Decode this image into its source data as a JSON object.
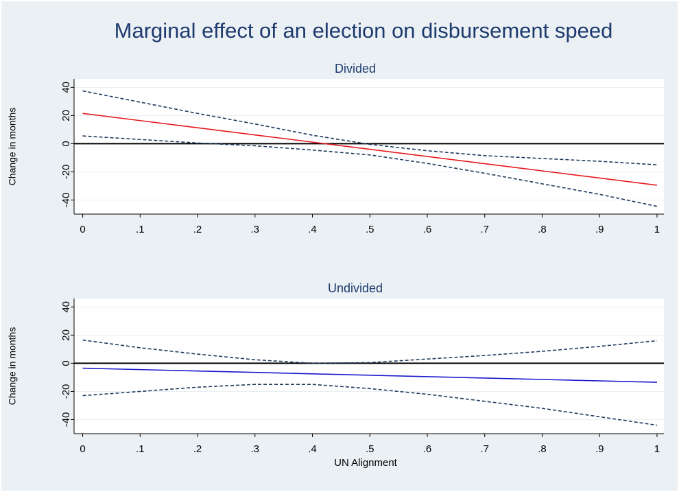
{
  "chart_data": [
    {
      "type": "line",
      "title": "Marginal effect of an election on disbursement speed",
      "subtitle": "Divided",
      "y_label": "Change in months",
      "x": [
        0,
        0.1,
        0.2,
        0.3,
        0.4,
        0.5,
        0.6,
        0.7,
        0.8,
        0.9,
        1
      ],
      "xlim": [
        -0.015,
        1.012
      ],
      "xticks": [
        0,
        {
          "value": 0.1,
          "label": ".1"
        },
        {
          "value": 0.2,
          "label": ".2"
        },
        {
          "value": 0.3,
          "label": ".3"
        },
        {
          "value": 0.4,
          "label": ".4"
        },
        {
          "value": 0.5,
          "label": ".5"
        },
        {
          "value": 0.6,
          "label": ".6"
        },
        {
          "value": 0.7,
          "label": ".7"
        },
        {
          "value": 0.8,
          "label": ".8"
        },
        {
          "value": 0.9,
          "label": ".9"
        },
        1
      ],
      "ylim": [
        -50,
        46
      ],
      "yticks": [
        -40,
        -20,
        0,
        20,
        40
      ],
      "grid": true,
      "hline": 0,
      "series": [
        {
          "color": "#e8191e",
          "dashed": false,
          "values": [
            21.5,
            16.4,
            11.3,
            6.2,
            1.1,
            -4,
            -9.1,
            -14.2,
            -19.3,
            -24.4,
            -29.5
          ]
        },
        {
          "color": "#1e3a5f",
          "dashed": true,
          "values": [
            37.5,
            29.5,
            21.5,
            14,
            6,
            -0.5,
            -5,
            -8.5,
            -10.5,
            -12.5,
            -15
          ]
        },
        {
          "color": "#1e3a5f",
          "dashed": true,
          "values": [
            5.5,
            3,
            0.5,
            -1.5,
            -4.5,
            -8,
            -14,
            -21,
            -28.5,
            -36,
            -44.5
          ]
        }
      ]
    },
    {
      "type": "line",
      "subtitle": "Undivided",
      "y_label": "Change in months",
      "x_label": "UN Alignment",
      "x": [
        0,
        0.1,
        0.2,
        0.3,
        0.4,
        0.5,
        0.6,
        0.7,
        0.8,
        0.9,
        1
      ],
      "xlim": [
        -0.015,
        1.012
      ],
      "xticks": [
        0,
        {
          "value": 0.1,
          "label": ".1"
        },
        {
          "value": 0.2,
          "label": ".2"
        },
        {
          "value": 0.3,
          "label": ".3"
        },
        {
          "value": 0.4,
          "label": ".4"
        },
        {
          "value": 0.5,
          "label": ".5"
        },
        {
          "value": 0.6,
          "label": ".6"
        },
        {
          "value": 0.7,
          "label": ".7"
        },
        {
          "value": 0.8,
          "label": ".8"
        },
        {
          "value": 0.9,
          "label": ".9"
        },
        1
      ],
      "ylim": [
        -50,
        46
      ],
      "yticks": [
        -40,
        -20,
        0,
        20,
        40
      ],
      "grid": true,
      "hline": 0,
      "series": [
        {
          "color": "#1a1acc",
          "dashed": false,
          "values": [
            -3.5,
            -4.5,
            -5.5,
            -6.5,
            -7.5,
            -8.5,
            -9.5,
            -10.5,
            -11.5,
            -12.5,
            -13.5
          ]
        },
        {
          "color": "#1e3a5f",
          "dashed": true,
          "values": [
            16.5,
            11,
            6.5,
            2.5,
            0,
            0.5,
            3,
            5.5,
            8.5,
            12,
            16
          ]
        },
        {
          "color": "#1e3a5f",
          "dashed": true,
          "values": [
            -23,
            -20,
            -17,
            -15,
            -15,
            -18,
            -22,
            -27,
            -32,
            -38,
            -44
          ]
        }
      ]
    }
  ]
}
